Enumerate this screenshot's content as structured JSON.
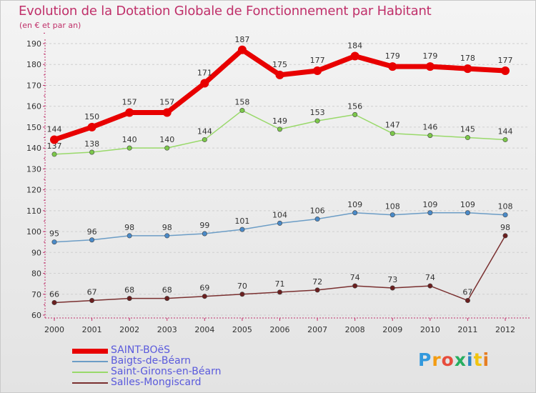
{
  "header": {
    "title": "Evolution de la Dotation Globale de Fonctionnement par Habitant",
    "subtitle": "(en € et par an)"
  },
  "logo": {
    "text": "Proxiti",
    "colors": [
      "#3399dd",
      "#f39c12",
      "#e74c3c",
      "#27ae60",
      "#2e86c1",
      "#f1c40f",
      "#e67e22"
    ]
  },
  "chart_data": {
    "type": "line",
    "title": "Evolution de la Dotation Globale de Fonctionnement par Habitant",
    "subtitle": "(en € et par an)",
    "xlabel": "",
    "ylabel": "",
    "ylim": [
      60,
      190
    ],
    "yticks": [
      60,
      70,
      80,
      90,
      100,
      110,
      120,
      130,
      140,
      150,
      160,
      170,
      180,
      190
    ],
    "x": [
      "2000",
      "2001",
      "2002",
      "2003",
      "2004",
      "2005",
      "2006",
      "2007",
      "2008",
      "2009",
      "2010",
      "2011",
      "2012"
    ],
    "grid": "horizontal-dashed",
    "legend": "bottom-left",
    "series": [
      {
        "name": "SAINT-BOëS",
        "color": "#e80000",
        "marker": "#e80000",
        "emphasis": true,
        "values": [
          144,
          150,
          157,
          157,
          171,
          187,
          175,
          177,
          184,
          179,
          179,
          178,
          177
        ]
      },
      {
        "name": "Baigts-de-Béarn",
        "color": "#6c9dc6",
        "marker": "#4a8ac8",
        "emphasis": false,
        "values": [
          95,
          96,
          98,
          98,
          99,
          101,
          104,
          106,
          109,
          108,
          109,
          109,
          108
        ]
      },
      {
        "name": "Saint-Girons-en-Béarn",
        "color": "#99d96a",
        "marker": "#7cc84a",
        "emphasis": false,
        "values": [
          137,
          138,
          140,
          140,
          144,
          158,
          149,
          153,
          156,
          147,
          146,
          145,
          144
        ]
      },
      {
        "name": "Salles-Mongiscard",
        "color": "#7a3030",
        "marker": "#6b1f1f",
        "emphasis": false,
        "values": [
          66,
          67,
          68,
          68,
          69,
          70,
          71,
          72,
          74,
          73,
          74,
          67,
          98
        ]
      }
    ]
  }
}
